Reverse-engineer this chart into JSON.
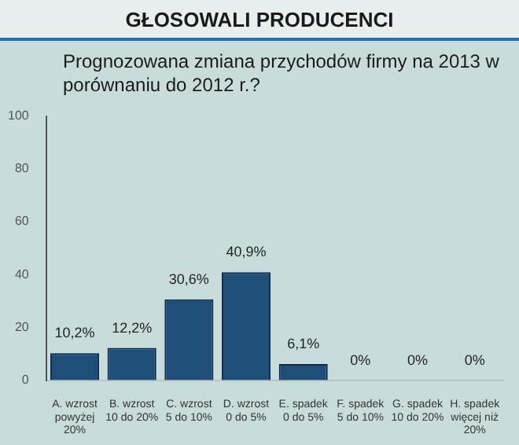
{
  "chart_data": {
    "type": "bar",
    "title": "GŁOSOWALI PRODUCENCI",
    "subtitle": "Prognozowana zmiana przychodów firmy na 2013 w porównaniu do 2012 r.?",
    "categories": [
      "A. wzrost powyżej 20%",
      "B. wzrost 10 do 20%",
      "C. wzrost 5 do 10%",
      "D. wzrost 0 do 5%",
      "E. spadek 0 do 5%",
      "F. spadek 5 do 10%",
      "G. spadek 10 do 20%",
      "H. spadek więcej niż 20%"
    ],
    "values": [
      10.2,
      12.2,
      30.6,
      40.9,
      6.1,
      0,
      0,
      0
    ],
    "value_labels": [
      "10,2%",
      "12,2%",
      "30,6%",
      "40,9%",
      "6,1%",
      "0%",
      "0%",
      "0%"
    ],
    "color": "#1f4e79",
    "ylim": [
      0,
      100
    ],
    "yticks": [
      0,
      20,
      40,
      60,
      80,
      100
    ],
    "grid": false,
    "legend": false
  }
}
